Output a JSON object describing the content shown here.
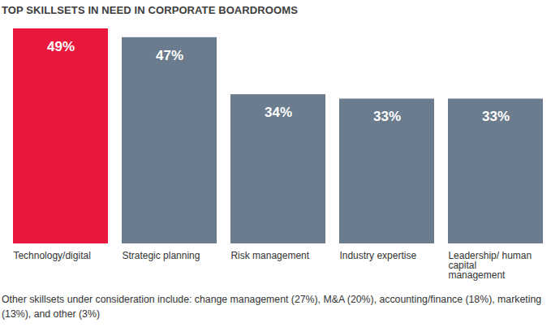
{
  "chart_data": {
    "type": "bar",
    "title": "TOP SKILLSETS IN NEED IN CORPORATE BOARDROOMS",
    "categories": [
      "Technology/digital",
      "Strategic planning",
      "Risk management",
      "Industry expertise",
      "Leadership/ human capital management"
    ],
    "values": [
      49,
      47,
      34,
      33,
      33
    ],
    "value_labels": [
      "49%",
      "47%",
      "34%",
      "33%",
      "33%"
    ],
    "colors": [
      "#e8193c",
      "#6b7c8e",
      "#6b7c8e",
      "#6b7c8e",
      "#6b7c8e"
    ],
    "data_labels": true,
    "tick_labels": "x",
    "caption": "Other skillsets under consideration include: change management (27%), M&A (20%), accounting/finance (18%), marketing (13%), and other (3%)"
  }
}
